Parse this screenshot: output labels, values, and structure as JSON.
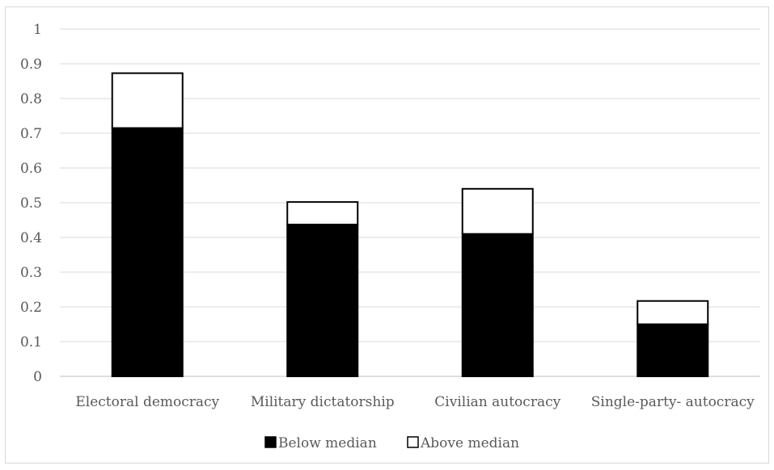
{
  "chart_data": {
    "type": "bar",
    "stacked": true,
    "categories": [
      "Electoral democracy",
      "Military dictatorship",
      "Civilian autocracy",
      "Single-party- autocracy"
    ],
    "series": [
      {
        "name": "Below median",
        "values": [
          0.715,
          0.437,
          0.41,
          0.15
        ],
        "color": "#000000"
      },
      {
        "name": "Above median",
        "values": [
          0.158,
          0.065,
          0.13,
          0.067
        ],
        "color": "#ffffff"
      }
    ],
    "ylim": [
      0,
      1
    ],
    "yticks": [
      "0",
      "0.1",
      "0.2",
      "0.3",
      "0.4",
      "0.5",
      "0.6",
      "0.7",
      "0.8",
      "0.9",
      "1"
    ],
    "grid": true,
    "legend_position": "bottom",
    "title": "",
    "xlabel": "",
    "ylabel": ""
  }
}
